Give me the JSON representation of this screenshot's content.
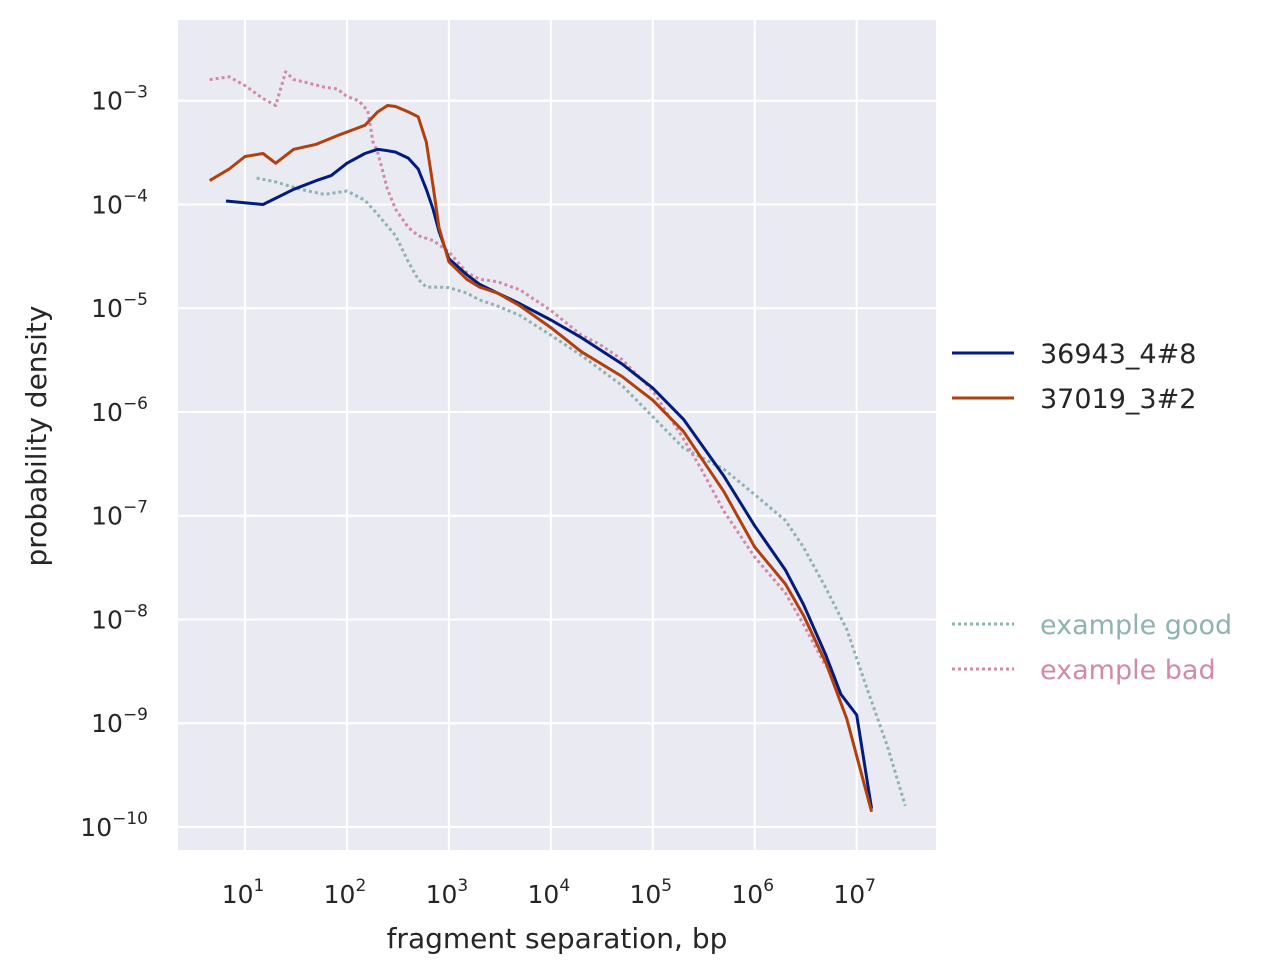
{
  "chart_data": {
    "type": "line",
    "title": "",
    "xlabel": "fragment separation, bp",
    "ylabel": "probability density",
    "xscale": "log",
    "yscale": "log",
    "xlim": [
      2.2,
      60000000
    ],
    "ylim": [
      6e-11,
      0.006
    ],
    "grid": true,
    "style": "seaborn darkgrid",
    "legend_position": "right",
    "x_ticks": [
      {
        "base": "10",
        "exp": "1",
        "value": 10
      },
      {
        "base": "10",
        "exp": "2",
        "value": 100
      },
      {
        "base": "10",
        "exp": "3",
        "value": 1000
      },
      {
        "base": "10",
        "exp": "4",
        "value": 10000
      },
      {
        "base": "10",
        "exp": "5",
        "value": 100000
      },
      {
        "base": "10",
        "exp": "6",
        "value": 1000000
      },
      {
        "base": "10",
        "exp": "7",
        "value": 10000000
      }
    ],
    "y_ticks": [
      {
        "base": "10",
        "exp": "−3",
        "value": 0.001
      },
      {
        "base": "10",
        "exp": "−4",
        "value": 0.0001
      },
      {
        "base": "10",
        "exp": "−5",
        "value": 1e-05
      },
      {
        "base": "10",
        "exp": "−6",
        "value": 1e-06
      },
      {
        "base": "10",
        "exp": "−7",
        "value": 1e-07
      },
      {
        "base": "10",
        "exp": "−8",
        "value": 1e-08
      },
      {
        "base": "10",
        "exp": "−9",
        "value": 1e-09
      },
      {
        "base": "10",
        "exp": "−10",
        "value": 1e-10
      }
    ],
    "series": [
      {
        "name": "example good",
        "color": "#8fb3b0",
        "dash": "dotted",
        "x": [
          13,
          20,
          35,
          60,
          100,
          150,
          200,
          300,
          400,
          500,
          600,
          800,
          1000,
          1500,
          2000,
          3000,
          5000,
          10000,
          20000,
          50000,
          100000,
          200000,
          500000,
          1000000,
          2000000,
          3000000,
          5000000,
          8000000,
          12000000,
          20000000,
          30000000
        ],
        "y": [
          0.00018,
          0.000165,
          0.00014,
          0.000125,
          0.000135,
          0.00011,
          8e-05,
          5e-05,
          2.8e-05,
          1.9e-05,
          1.6e-05,
          1.6e-05,
          1.58e-05,
          1.4e-05,
          1.2e-05,
          1.05e-05,
          8.5e-06,
          5.5e-06,
          3.5e-06,
          1.8e-06,
          9e-07,
          4.5e-07,
          2.8e-07,
          1.6e-07,
          9e-08,
          5e-08,
          2e-08,
          8e-09,
          2.5e-09,
          6e-10,
          1.6e-10
        ]
      },
      {
        "name": "example bad",
        "color": "#d28ba6",
        "dash": "dotted",
        "x": [
          4.5,
          7,
          10,
          15,
          20,
          25,
          30,
          40,
          60,
          80,
          100,
          130,
          160,
          180,
          200,
          250,
          300,
          400,
          500,
          700,
          1000,
          1500,
          2000,
          3000,
          5000,
          10000,
          20000,
          30000,
          50000,
          100000,
          200000,
          300000,
          500000,
          1000000,
          2000000,
          3000000,
          5000000
        ],
        "y": [
          0.0016,
          0.0017,
          0.0014,
          0.00105,
          0.0009,
          0.0019,
          0.0016,
          0.0015,
          0.00135,
          0.0013,
          0.0011,
          0.001,
          0.0008,
          0.0004,
          0.00032,
          0.00014,
          9e-05,
          6e-05,
          5e-05,
          4.5e-05,
          3.5e-05,
          2.2e-05,
          1.9e-05,
          1.8e-05,
          1.5e-05,
          9.5e-06,
          5.5e-06,
          4.5e-06,
          3.2e-06,
          1.6e-06,
          5.5e-07,
          2.8e-07,
          1.1e-07,
          4e-08,
          1.8e-08,
          9e-09,
          3.5e-09
        ]
      },
      {
        "name": "36943_4#8",
        "color": "#001c7f",
        "dash": "solid",
        "x": [
          6.5,
          15,
          30,
          50,
          70,
          100,
          150,
          200,
          250,
          300,
          400,
          500,
          600,
          700,
          800,
          1000,
          1500,
          2000,
          3000,
          5000,
          10000,
          20000,
          50000,
          100000,
          200000,
          500000,
          1000000,
          2000000,
          3000000,
          5000000,
          7000000,
          10000000,
          14000000
        ],
        "y": [
          0.000108,
          0.0001,
          0.00014,
          0.00017,
          0.00019,
          0.00025,
          0.00031,
          0.00034,
          0.00033,
          0.00032,
          0.00028,
          0.00022,
          0.00014,
          9e-05,
          5.5e-05,
          3e-05,
          2.1e-05,
          1.7e-05,
          1.4e-05,
          1.1e-05,
          7.7e-06,
          5.2e-06,
          2.9e-06,
          1.7e-06,
          8.5e-07,
          2.4e-07,
          8e-08,
          3e-08,
          1.4e-08,
          4.5e-09,
          1.9e-09,
          1.2e-09,
          1.5e-10
        ]
      },
      {
        "name": "37019_3#2",
        "color": "#b1400d",
        "dash": "solid",
        "x": [
          4.5,
          7,
          10,
          15,
          20,
          30,
          50,
          80,
          100,
          150,
          200,
          250,
          300,
          400,
          500,
          600,
          700,
          800,
          1000,
          1500,
          2000,
          3000,
          5000,
          10000,
          20000,
          50000,
          100000,
          200000,
          500000,
          1000000,
          2000000,
          3000000,
          5000000,
          8000000,
          14000000
        ],
        "y": [
          0.00017,
          0.00022,
          0.00029,
          0.00031,
          0.00025,
          0.00034,
          0.00038,
          0.00046,
          0.0005,
          0.00058,
          0.00078,
          0.0009,
          0.00088,
          0.00078,
          0.0007,
          0.0004,
          0.00015,
          6e-05,
          2.8e-05,
          1.9e-05,
          1.6e-05,
          1.4e-05,
          1.05e-05,
          6.5e-06,
          3.8e-06,
          2.2e-06,
          1.3e-06,
          6.5e-07,
          1.7e-07,
          5e-08,
          2.2e-08,
          1.1e-08,
          3.8e-09,
          1.1e-09,
          1.4e-10
        ]
      }
    ]
  },
  "legend": {
    "items": [
      {
        "name": "36943_4#8",
        "text_color": "#262626",
        "line_color": "#001c7f",
        "dash": "solid"
      },
      {
        "name": "37019_3#2",
        "text_color": "#262626",
        "line_color": "#b1400d",
        "dash": "solid"
      },
      {
        "name": "example good",
        "text_color": "#8fb3b0",
        "line_color": "#8fb3b0",
        "dash": "dotted"
      },
      {
        "name": "example bad",
        "text_color": "#d28ba6",
        "line_color": "#d28ba6",
        "dash": "dotted"
      }
    ]
  },
  "colors": {
    "plot_background": "#eaeaf2",
    "grid": "#ffffff",
    "text": "#262626"
  }
}
